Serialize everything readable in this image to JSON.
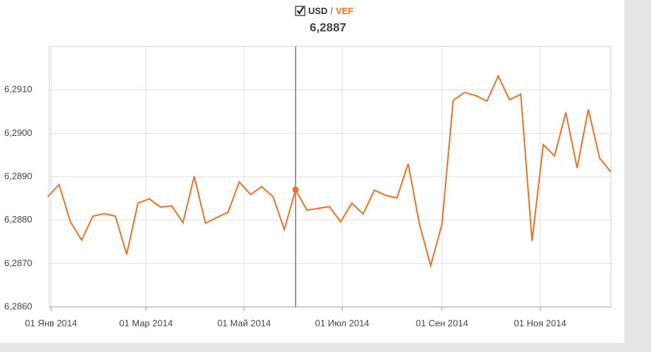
{
  "chart_data": {
    "type": "line",
    "legend": {
      "base": "USD",
      "separator": "/",
      "quote": "VEF",
      "checked": true
    },
    "highlight": {
      "index": 22,
      "label": "6,2887"
    },
    "x": [
      "2013-12-30",
      "2014-01-06",
      "2014-01-13",
      "2014-01-20",
      "2014-01-27",
      "2014-02-03",
      "2014-02-10",
      "2014-02-17",
      "2014-02-24",
      "2014-03-03",
      "2014-03-10",
      "2014-03-17",
      "2014-03-24",
      "2014-03-31",
      "2014-04-07",
      "2014-04-14",
      "2014-04-21",
      "2014-04-28",
      "2014-05-05",
      "2014-05-12",
      "2014-05-19",
      "2014-05-26",
      "2014-06-02",
      "2014-06-09",
      "2014-06-16",
      "2014-06-23",
      "2014-06-30",
      "2014-07-07",
      "2014-07-14",
      "2014-07-21",
      "2014-07-28",
      "2014-08-04",
      "2014-08-11",
      "2014-08-18",
      "2014-08-25",
      "2014-09-01",
      "2014-09-08",
      "2014-09-15",
      "2014-09-22",
      "2014-09-29",
      "2014-10-06",
      "2014-10-13",
      "2014-10-20",
      "2014-10-27",
      "2014-11-03",
      "2014-11-10",
      "2014-11-17",
      "2014-11-24",
      "2014-12-01",
      "2014-12-08",
      "2014-12-15"
    ],
    "series": [
      {
        "color": "#f07022",
        "values": [
          6.28854,
          6.28882,
          6.28796,
          6.28754,
          6.28809,
          6.28815,
          6.28809,
          6.28721,
          6.28839,
          6.28849,
          6.2883,
          6.28833,
          6.28794,
          6.28901,
          6.28793,
          6.28806,
          6.28818,
          6.28888,
          6.28859,
          6.28877,
          6.28854,
          6.28778,
          6.2887,
          6.28823,
          6.28827,
          6.28831,
          6.28796,
          6.28839,
          6.28814,
          6.28869,
          6.28857,
          6.28851,
          6.2893,
          6.28791,
          6.28695,
          6.28791,
          6.29076,
          6.29094,
          6.29087,
          6.29074,
          6.29132,
          6.29077,
          6.2909,
          6.28752,
          6.28974,
          6.28948,
          6.29048,
          6.2892,
          6.29055,
          6.28943,
          6.28911
        ]
      }
    ],
    "xlim": [
      "2013-12-30",
      "2014-12-15"
    ],
    "xticks": [
      {
        "value": "2014-01-01",
        "label": "01 Янв 2014"
      },
      {
        "value": "2014-03-01",
        "label": "01 Мар 2014"
      },
      {
        "value": "2014-05-01",
        "label": "01 Май 2014"
      },
      {
        "value": "2014-07-01",
        "label": "01 Июл 2014"
      },
      {
        "value": "2014-09-01",
        "label": "01 Сен 2014"
      },
      {
        "value": "2014-11-01",
        "label": "01 Ноя 2014"
      }
    ],
    "ylim": [
      6.286,
      6.292
    ],
    "yticks": [
      {
        "value": 6.286,
        "label": "6,2860"
      },
      {
        "value": 6.287,
        "label": "6,2870"
      },
      {
        "value": 6.288,
        "label": "6,2880"
      },
      {
        "value": 6.289,
        "label": "6,2890"
      },
      {
        "value": 6.29,
        "label": "6,2900"
      },
      {
        "value": 6.291,
        "label": "6,2910"
      }
    ],
    "grid": true
  }
}
